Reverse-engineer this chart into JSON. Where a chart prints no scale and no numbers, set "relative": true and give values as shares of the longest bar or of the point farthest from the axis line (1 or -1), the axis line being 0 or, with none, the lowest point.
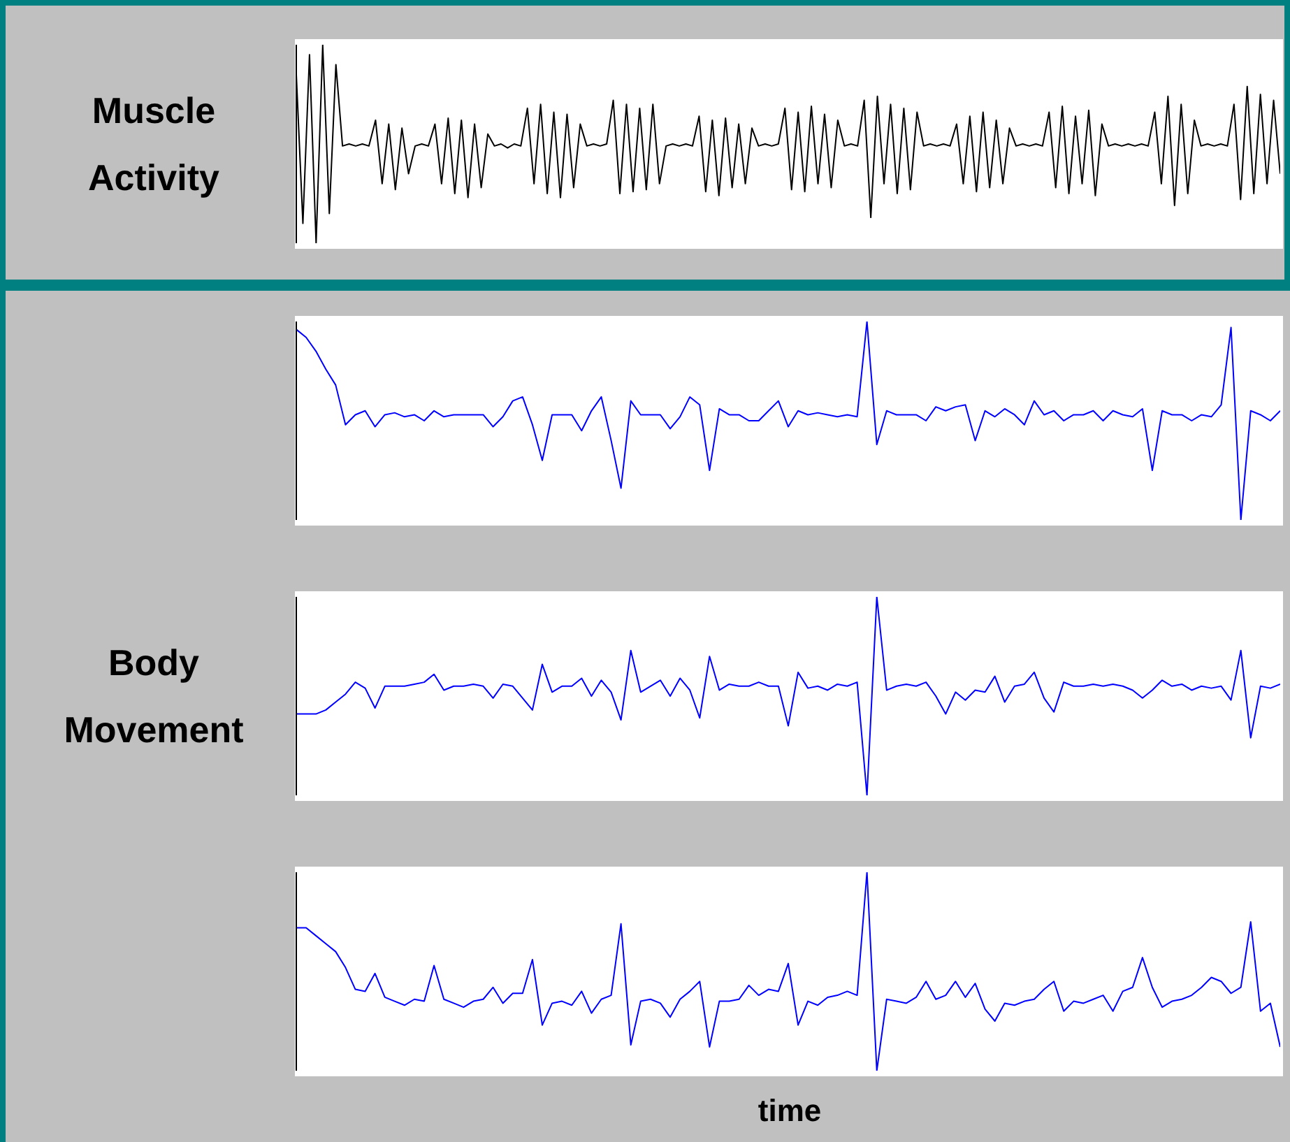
{
  "chart_data": [
    {
      "type": "line",
      "relative": true,
      "tick_labels": false,
      "ylabel": "Muscle Activity",
      "categories": [
        null,
        null,
        null,
        null,
        null,
        null,
        null,
        null,
        null,
        null,
        null,
        null,
        null,
        null,
        null,
        null,
        null,
        null,
        null,
        null,
        null,
        null,
        null,
        null,
        null,
        null,
        null,
        null,
        null,
        null,
        null,
        null,
        null,
        null,
        null,
        null,
        null,
        null,
        null,
        null,
        null,
        null,
        null,
        null,
        null,
        null,
        null,
        null,
        null,
        null,
        null,
        null,
        null,
        null,
        null,
        null,
        null,
        null,
        null,
        null,
        null,
        null,
        null,
        null,
        null,
        null,
        null,
        null,
        null,
        null,
        null,
        null,
        null,
        null,
        null,
        null,
        null,
        null,
        null,
        null,
        null,
        null,
        null,
        null,
        null,
        null,
        null,
        null,
        null,
        null,
        null,
        null,
        null,
        null,
        null,
        null,
        null,
        null,
        null,
        null,
        null,
        null,
        null,
        null,
        null,
        null,
        null,
        null,
        null,
        null,
        null,
        null,
        null,
        null,
        null,
        null,
        null,
        null,
        null,
        null,
        null,
        null,
        null,
        null,
        null,
        null,
        null,
        null,
        null,
        null,
        null,
        null,
        null,
        null,
        null,
        null,
        null,
        null,
        null,
        null,
        null,
        null,
        null,
        null,
        null,
        null,
        null,
        null,
        null,
        null
      ],
      "series": [
        {
          "color": "#000000",
          "values": [
            0.85,
            0.1,
            0.95,
            0.0,
            1.0,
            0.15,
            0.9,
            0.49,
            0.5,
            0.49,
            0.5,
            0.49,
            0.62,
            0.3,
            0.6,
            0.27,
            0.58,
            0.35,
            0.49,
            0.5,
            0.49,
            0.6,
            0.3,
            0.63,
            0.25,
            0.62,
            0.23,
            0.6,
            0.28,
            0.55,
            0.49,
            0.5,
            0.48,
            0.5,
            0.49,
            0.68,
            0.3,
            0.7,
            0.25,
            0.66,
            0.23,
            0.65,
            0.28,
            0.6,
            0.49,
            0.5,
            0.49,
            0.5,
            0.72,
            0.25,
            0.7,
            0.26,
            0.68,
            0.27,
            0.7,
            0.3,
            0.49,
            0.5,
            0.49,
            0.5,
            0.49,
            0.64,
            0.26,
            0.62,
            0.24,
            0.63,
            0.28,
            0.6,
            0.3,
            0.58,
            0.49,
            0.5,
            0.49,
            0.5,
            0.68,
            0.27,
            0.66,
            0.26,
            0.69,
            0.3,
            0.65,
            0.28,
            0.62,
            0.49,
            0.5,
            0.49,
            0.72,
            0.13,
            0.74,
            0.3,
            0.7,
            0.25,
            0.68,
            0.27,
            0.66,
            0.49,
            0.5,
            0.49,
            0.5,
            0.49,
            0.6,
            0.3,
            0.64,
            0.26,
            0.66,
            0.28,
            0.62,
            0.3,
            0.58,
            0.49,
            0.5,
            0.49,
            0.5,
            0.49,
            0.66,
            0.28,
            0.69,
            0.25,
            0.64,
            0.3,
            0.67,
            0.24,
            0.6,
            0.49,
            0.5,
            0.49,
            0.5,
            0.49,
            0.5,
            0.49,
            0.66,
            0.3,
            0.74,
            0.19,
            0.7,
            0.25,
            0.62,
            0.49,
            0.5,
            0.49,
            0.5,
            0.49,
            0.7,
            0.22,
            0.79,
            0.25,
            0.75,
            0.3,
            0.72,
            0.35
          ]
        }
      ]
    },
    {
      "type": "line",
      "relative": true,
      "tick_labels": false,
      "categories": [
        null,
        null,
        null,
        null,
        null,
        null,
        null,
        null,
        null,
        null,
        null,
        null,
        null,
        null,
        null,
        null,
        null,
        null,
        null,
        null,
        null,
        null,
        null,
        null,
        null,
        null,
        null,
        null,
        null,
        null,
        null,
        null,
        null,
        null,
        null,
        null,
        null,
        null,
        null,
        null,
        null,
        null,
        null,
        null,
        null,
        null,
        null,
        null,
        null,
        null,
        null,
        null,
        null,
        null,
        null,
        null,
        null,
        null,
        null,
        null,
        null,
        null,
        null,
        null,
        null,
        null,
        null,
        null,
        null,
        null,
        null,
        null,
        null,
        null,
        null,
        null,
        null,
        null,
        null,
        null,
        null,
        null,
        null,
        null,
        null,
        null,
        null,
        null,
        null,
        null,
        null,
        null,
        null,
        null,
        null,
        null,
        null,
        null,
        null,
        null,
        null
      ],
      "series": [
        {
          "color": "#0000ff",
          "values": [
            0.96,
            0.92,
            0.85,
            0.76,
            0.68,
            0.48,
            0.53,
            0.55,
            0.47,
            0.53,
            0.54,
            0.52,
            0.53,
            0.5,
            0.55,
            0.52,
            0.53,
            0.53,
            0.53,
            0.53,
            0.47,
            0.52,
            0.6,
            0.62,
            0.48,
            0.3,
            0.53,
            0.53,
            0.53,
            0.45,
            0.55,
            0.62,
            0.4,
            0.16,
            0.6,
            0.53,
            0.53,
            0.53,
            0.46,
            0.52,
            0.62,
            0.58,
            0.25,
            0.56,
            0.53,
            0.53,
            0.5,
            0.5,
            0.55,
            0.6,
            0.47,
            0.55,
            0.53,
            0.54,
            0.53,
            0.52,
            0.53,
            0.52,
            1.0,
            0.38,
            0.55,
            0.53,
            0.53,
            0.53,
            0.5,
            0.57,
            0.55,
            0.57,
            0.58,
            0.4,
            0.55,
            0.52,
            0.56,
            0.53,
            0.48,
            0.6,
            0.53,
            0.55,
            0.5,
            0.53,
            0.53,
            0.55,
            0.5,
            0.55,
            0.53,
            0.52,
            0.56,
            0.25,
            0.55,
            0.53,
            0.53,
            0.5,
            0.53,
            0.52,
            0.58,
            0.97,
            0.0,
            0.55,
            0.53,
            0.5,
            0.55
          ]
        }
      ]
    },
    {
      "type": "line",
      "relative": true,
      "tick_labels": false,
      "ylabel": "Body Movement",
      "categories": [
        null,
        null,
        null,
        null,
        null,
        null,
        null,
        null,
        null,
        null,
        null,
        null,
        null,
        null,
        null,
        null,
        null,
        null,
        null,
        null,
        null,
        null,
        null,
        null,
        null,
        null,
        null,
        null,
        null,
        null,
        null,
        null,
        null,
        null,
        null,
        null,
        null,
        null,
        null,
        null,
        null,
        null,
        null,
        null,
        null,
        null,
        null,
        null,
        null,
        null,
        null,
        null,
        null,
        null,
        null,
        null,
        null,
        null,
        null,
        null,
        null,
        null,
        null,
        null,
        null,
        null,
        null,
        null,
        null,
        null,
        null,
        null,
        null,
        null,
        null,
        null,
        null,
        null,
        null,
        null,
        null,
        null,
        null,
        null,
        null,
        null,
        null,
        null,
        null,
        null,
        null,
        null,
        null,
        null,
        null,
        null,
        null,
        null,
        null,
        null,
        null
      ],
      "series": [
        {
          "color": "#0000ff",
          "values": [
            0.41,
            0.41,
            0.41,
            0.43,
            0.47,
            0.51,
            0.57,
            0.54,
            0.44,
            0.55,
            0.55,
            0.55,
            0.56,
            0.57,
            0.61,
            0.53,
            0.55,
            0.55,
            0.56,
            0.55,
            0.49,
            0.56,
            0.55,
            0.49,
            0.43,
            0.66,
            0.52,
            0.55,
            0.55,
            0.59,
            0.5,
            0.58,
            0.52,
            0.38,
            0.73,
            0.52,
            0.55,
            0.58,
            0.5,
            0.59,
            0.53,
            0.39,
            0.7,
            0.53,
            0.56,
            0.55,
            0.55,
            0.57,
            0.55,
            0.55,
            0.35,
            0.62,
            0.54,
            0.55,
            0.53,
            0.56,
            0.55,
            0.57,
            0.0,
            1.0,
            0.53,
            0.55,
            0.56,
            0.55,
            0.57,
            0.5,
            0.41,
            0.52,
            0.48,
            0.53,
            0.52,
            0.6,
            0.47,
            0.55,
            0.56,
            0.62,
            0.49,
            0.42,
            0.57,
            0.55,
            0.55,
            0.56,
            0.55,
            0.56,
            0.55,
            0.53,
            0.49,
            0.53,
            0.58,
            0.55,
            0.56,
            0.53,
            0.55,
            0.54,
            0.55,
            0.48,
            0.73,
            0.29,
            0.55,
            0.54,
            0.56
          ]
        }
      ]
    },
    {
      "type": "line",
      "relative": true,
      "tick_labels": false,
      "xlabel": "time",
      "categories": [
        null,
        null,
        null,
        null,
        null,
        null,
        null,
        null,
        null,
        null,
        null,
        null,
        null,
        null,
        null,
        null,
        null,
        null,
        null,
        null,
        null,
        null,
        null,
        null,
        null,
        null,
        null,
        null,
        null,
        null,
        null,
        null,
        null,
        null,
        null,
        null,
        null,
        null,
        null,
        null,
        null,
        null,
        null,
        null,
        null,
        null,
        null,
        null,
        null,
        null,
        null,
        null,
        null,
        null,
        null,
        null,
        null,
        null,
        null,
        null,
        null,
        null,
        null,
        null,
        null,
        null,
        null,
        null,
        null,
        null,
        null,
        null,
        null,
        null,
        null,
        null,
        null,
        null,
        null,
        null,
        null,
        null,
        null,
        null,
        null,
        null,
        null,
        null,
        null,
        null,
        null,
        null,
        null,
        null,
        null,
        null,
        null,
        null,
        null,
        null,
        null
      ],
      "series": [
        {
          "color": "#0000ff",
          "values": [
            0.72,
            0.72,
            0.68,
            0.64,
            0.6,
            0.52,
            0.41,
            0.4,
            0.49,
            0.37,
            0.35,
            0.33,
            0.36,
            0.35,
            0.53,
            0.36,
            0.34,
            0.32,
            0.35,
            0.36,
            0.42,
            0.34,
            0.39,
            0.39,
            0.56,
            0.23,
            0.34,
            0.35,
            0.33,
            0.4,
            0.29,
            0.36,
            0.38,
            0.74,
            0.13,
            0.35,
            0.36,
            0.34,
            0.27,
            0.36,
            0.4,
            0.45,
            0.12,
            0.35,
            0.35,
            0.36,
            0.43,
            0.38,
            0.41,
            0.4,
            0.54,
            0.23,
            0.35,
            0.33,
            0.37,
            0.38,
            0.4,
            0.38,
            1.0,
            0.0,
            0.36,
            0.35,
            0.34,
            0.37,
            0.45,
            0.36,
            0.38,
            0.45,
            0.37,
            0.44,
            0.31,
            0.25,
            0.34,
            0.33,
            0.35,
            0.36,
            0.41,
            0.45,
            0.3,
            0.35,
            0.34,
            0.36,
            0.38,
            0.3,
            0.4,
            0.42,
            0.57,
            0.42,
            0.32,
            0.35,
            0.36,
            0.38,
            0.42,
            0.47,
            0.45,
            0.39,
            0.42,
            0.75,
            0.3,
            0.34,
            0.12
          ]
        }
      ]
    }
  ]
}
